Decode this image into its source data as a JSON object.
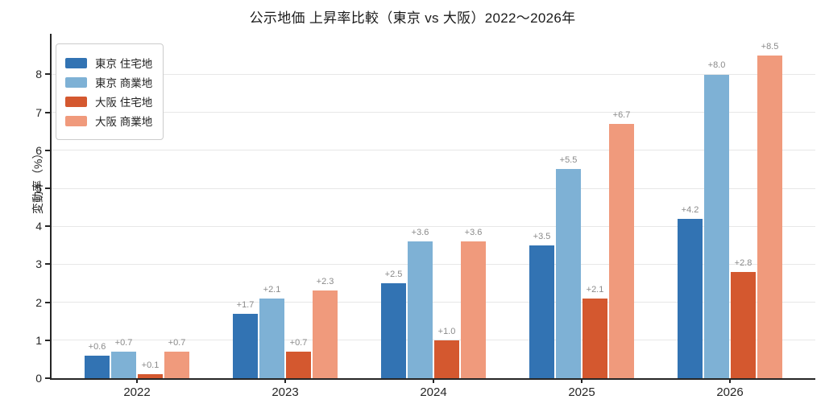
{
  "chart_data": {
    "type": "bar",
    "title": "公示地価 上昇率比較（東京 vs 大阪）2022〜2026年",
    "xlabel": "",
    "ylabel": "変動率（%）",
    "categories": [
      "2022",
      "2023",
      "2024",
      "2025",
      "2026"
    ],
    "series": [
      {
        "name": "東京 住宅地",
        "color": "#3273b3",
        "values": [
          0.6,
          1.7,
          2.5,
          3.5,
          4.2
        ],
        "labels": [
          "+0.6",
          "+1.7",
          "+2.5",
          "+3.5",
          "+4.2"
        ]
      },
      {
        "name": "東京 商業地",
        "color": "#7eb1d5",
        "values": [
          0.7,
          2.1,
          3.6,
          5.5,
          8.0
        ],
        "labels": [
          "+0.7",
          "+2.1",
          "+3.6",
          "+5.5",
          "+8.0"
        ]
      },
      {
        "name": "大阪 住宅地",
        "color": "#d4582f",
        "values": [
          0.1,
          0.7,
          1.0,
          2.1,
          2.8
        ],
        "labels": [
          "+0.1",
          "+0.7",
          "+1.0",
          "+2.1",
          "+2.8"
        ]
      },
      {
        "name": "大阪 商業地",
        "color": "#f09a7c",
        "values": [
          0.7,
          2.3,
          3.6,
          6.7,
          8.5
        ],
        "labels": [
          "+0.7",
          "+2.3",
          "+3.6",
          "+6.7",
          "+8.5"
        ]
      }
    ],
    "ylim": [
      0,
      9.07
    ],
    "yticks": [
      0,
      1,
      2,
      3,
      4,
      5,
      6,
      7,
      8
    ],
    "grid": true,
    "legend_position": "upper left"
  }
}
